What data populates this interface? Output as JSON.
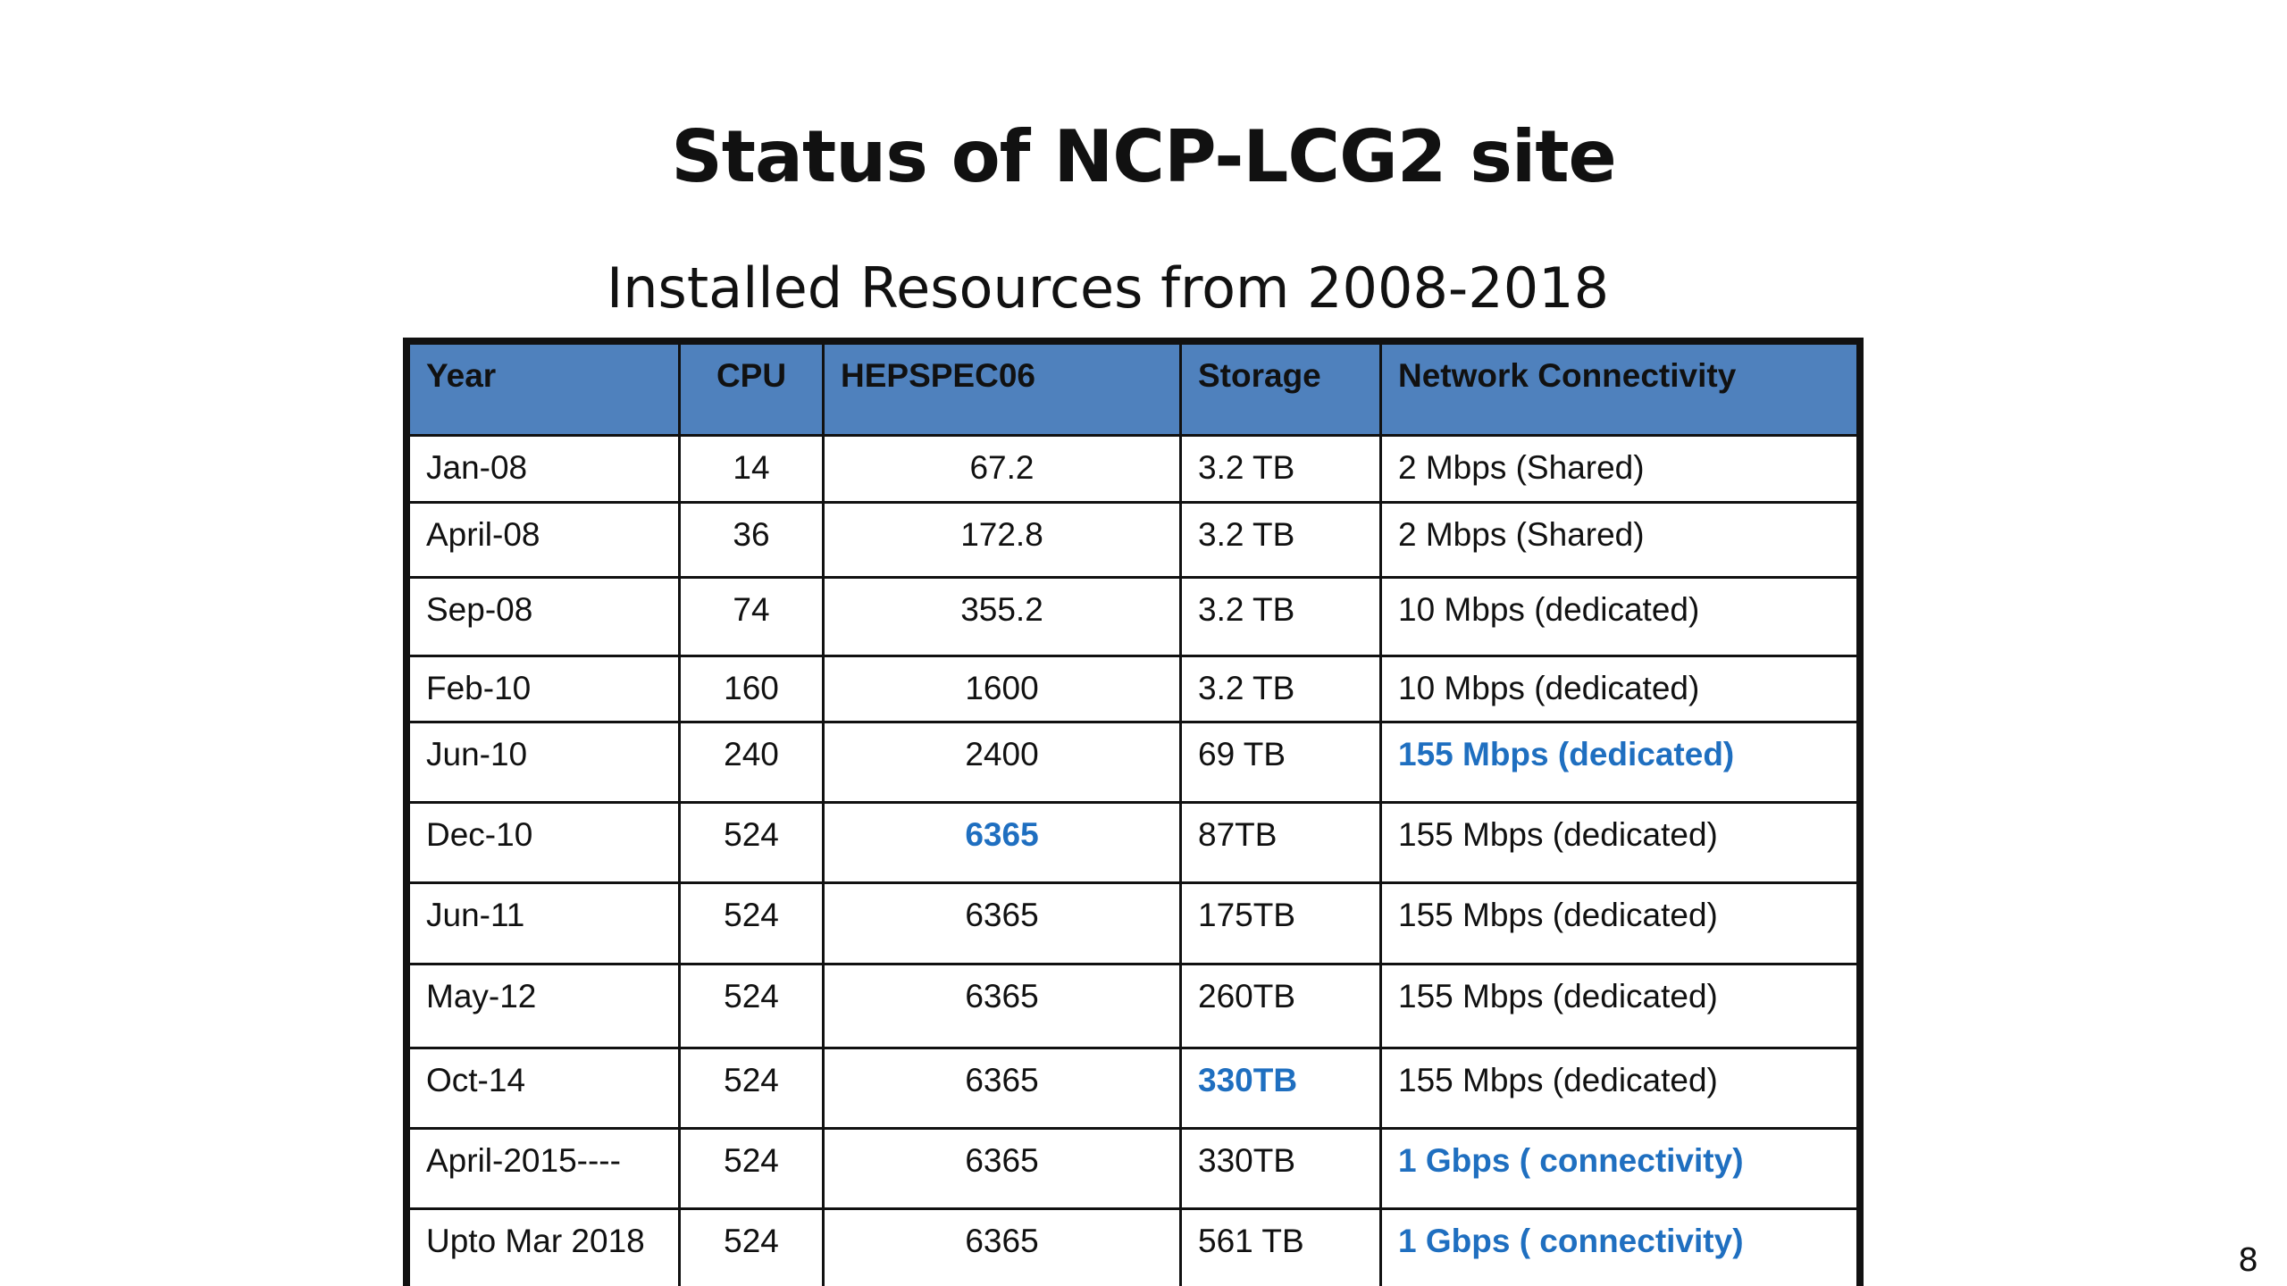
{
  "slide": {
    "title": "Status of NCP-LCG2 site",
    "subtitle": "Installed Resources from 2008-2018",
    "page_number": "8"
  },
  "colors": {
    "header_bg": "#4f81bd",
    "highlight_text": "#1f6fc0"
  },
  "table": {
    "headers": [
      "Year",
      "CPU",
      "HEPSPEC06",
      "Storage",
      "Network Connectivity"
    ],
    "rows": [
      {
        "year": "Jan-08",
        "cpu": "14",
        "hepspec": "67.2",
        "storage": "3.2 TB",
        "network": "2 Mbps (Shared)",
        "highlight": []
      },
      {
        "year": "April-08",
        "cpu": "36",
        "hepspec": "172.8",
        "storage": "3.2  TB",
        "network": "2 Mbps (Shared)",
        "highlight": []
      },
      {
        "year": "Sep-08",
        "cpu": "74",
        "hepspec": "355.2",
        "storage": "3.2 TB",
        "network": "10 Mbps (dedicated)",
        "highlight": []
      },
      {
        "year": "Feb-10",
        "cpu": "160",
        "hepspec": "1600",
        "storage": "3.2 TB",
        "network": "10 Mbps (dedicated)",
        "highlight": []
      },
      {
        "year": "Jun-10",
        "cpu": "240",
        "hepspec": "2400",
        "storage": "69 TB",
        "network": "155 Mbps (dedicated)",
        "highlight": [
          "network"
        ]
      },
      {
        "year": "Dec-10",
        "cpu": "524",
        "hepspec": "6365",
        "storage": "87TB",
        "network": "155 Mbps (dedicated)",
        "highlight": [
          "hepspec"
        ]
      },
      {
        "year": "Jun-11",
        "cpu": "524",
        "hepspec": "6365",
        "storage": "175TB",
        "network": "155 Mbps (dedicated)",
        "highlight": []
      },
      {
        "year": "May-12",
        "cpu": "524",
        "hepspec": "6365",
        "storage": "260TB",
        "network": "155 Mbps (dedicated)",
        "highlight": []
      },
      {
        "year": "Oct-14",
        "cpu": "524",
        "hepspec": "6365",
        "storage": "330TB",
        "network": "155 Mbps (dedicated)",
        "highlight": [
          "storage"
        ]
      },
      {
        "year": "April-2015----",
        "cpu": "524",
        "hepspec": "6365",
        "storage": "330TB",
        "network": "1 Gbps ( connectivity)",
        "highlight": [
          "network"
        ]
      },
      {
        "year": "Upto Mar 2018",
        "cpu": "524",
        "hepspec": "6365",
        "storage": "561 TB",
        "network": "1 Gbps ( connectivity)",
        "highlight": [
          "network"
        ]
      }
    ]
  }
}
